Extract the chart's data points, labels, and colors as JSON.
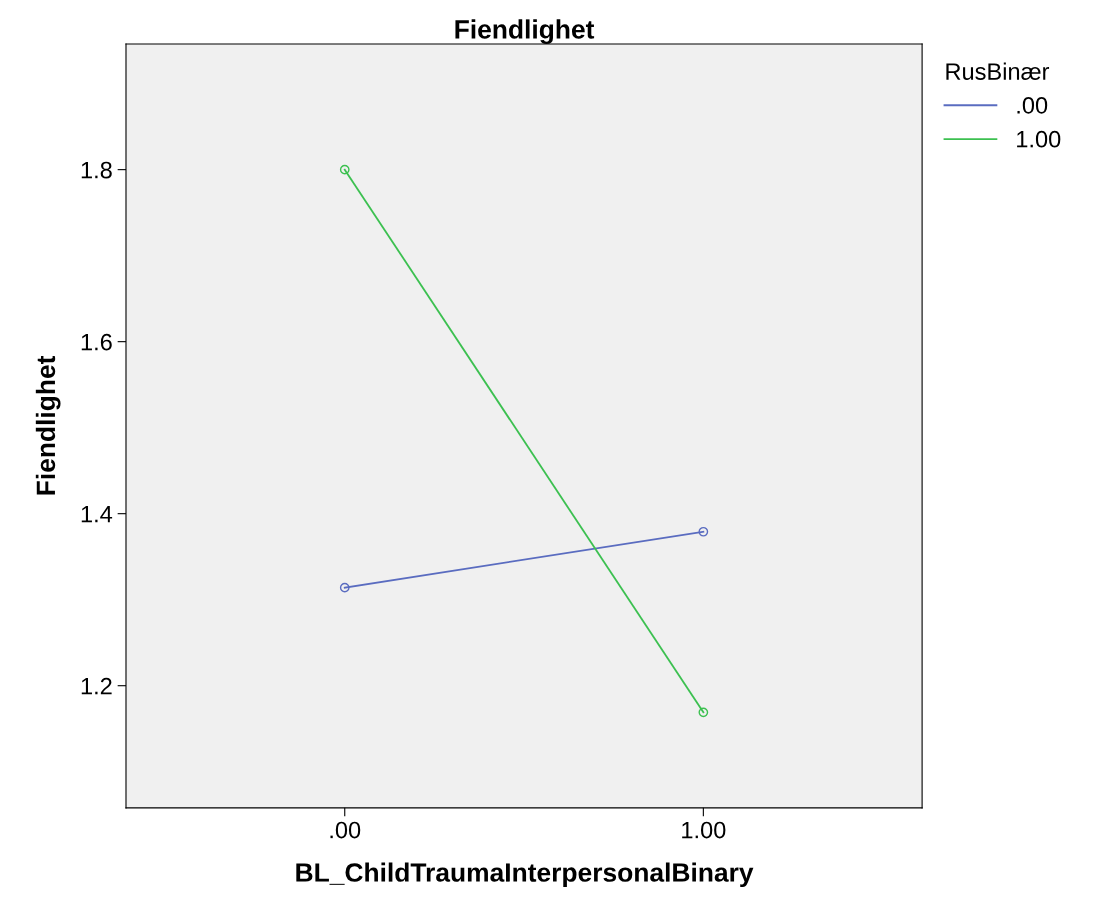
{
  "chart_data": {
    "type": "line",
    "title": "Fiendlighet",
    "xlabel": "BL_ChildTraumaInterpersonalBinary",
    "ylabel": "Fiendlighet",
    "legend_title": "RusBinær",
    "categories": [
      ".00",
      "1.00"
    ],
    "series": [
      {
        "name": ".00",
        "color": "#5a6cc0",
        "values": [
          1.314,
          1.379
        ]
      },
      {
        "name": "1.00",
        "color": "#3cc050",
        "values": [
          1.8,
          1.169
        ]
      }
    ],
    "ylim": [
      1.058,
      1.946
    ],
    "yticks": [
      1.2,
      1.4,
      1.6,
      1.8
    ],
    "marker": "circle",
    "line_style": "solid",
    "legend": "top right",
    "grid": false
  }
}
